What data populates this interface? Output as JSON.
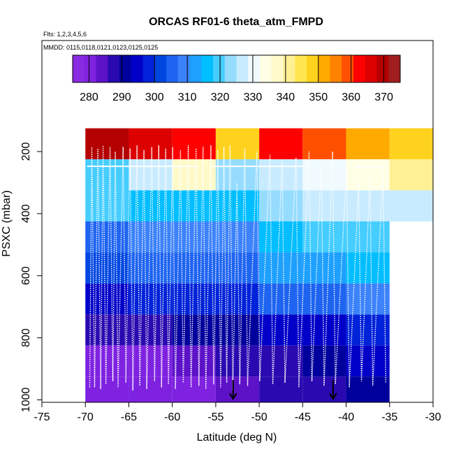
{
  "chart_data": {
    "type": "heatmap",
    "title": "ORCAS RF01-6 theta_atm_FMPD",
    "subtitle_flights": "Flts: 1,2,3,4,5,6",
    "subtitle_dates": "MMDD: 0115,0118,0121,0123,0125,0125",
    "xlabel": "Latitude (deg N)",
    "ylabel": "PSXC (mbar)",
    "xlim": [
      -75,
      -30
    ],
    "ylim": [
      1000,
      0
    ],
    "x_ticks": [
      -75,
      -70,
      -65,
      -60,
      -55,
      -50,
      -45,
      -40,
      -35,
      -30
    ],
    "y_ticks": [
      200,
      400,
      600,
      800,
      1000
    ],
    "colorbar": {
      "min": 275,
      "max": 375,
      "ticks": [
        280,
        290,
        300,
        310,
        320,
        330,
        340,
        350,
        360,
        370
      ],
      "colors": [
        "#8a2be2",
        "#7e22e0",
        "#5d12c8",
        "#2a0ab0",
        "#00009c",
        "#0000c8",
        "#0022d8",
        "#0046e0",
        "#1e64f0",
        "#3c82fa",
        "#1ea0ff",
        "#00beff",
        "#46cdff",
        "#96dcff",
        "#c8ebff",
        "#f0faff",
        "#ffffe6",
        "#fffac8",
        "#fff096",
        "#ffe650",
        "#ffd21e",
        "#ffaa00",
        "#ff8200",
        "#ff5000",
        "#ff0000",
        "#dc0000",
        "#b40000",
        "#a01e1e"
      ]
    },
    "lat_bins": [
      -70,
      -65,
      -60,
      -55,
      -50,
      -45,
      -40,
      -35,
      -30
    ],
    "pressure_bins": [
      125,
      225,
      325,
      425,
      525,
      625,
      725,
      825,
      925,
      1025
    ],
    "cells": [
      [
        370,
        365,
        364,
        348,
        363,
        359,
        350,
        348
      ],
      [
        318,
        326,
        338,
        322,
        327,
        329,
        333,
        340
      ],
      [
        318,
        315,
        317,
        317,
        324,
        326,
        326,
        326
      ],
      [
        305,
        308,
        309,
        308,
        316,
        320,
        320,
        null
      ],
      [
        300,
        304,
        305,
        306,
        311,
        312,
        316,
        null
      ],
      [
        294,
        297,
        297,
        298,
        304,
        306,
        309,
        null
      ],
      [
        287,
        289,
        290,
        291,
        295,
        296,
        298,
        null
      ],
      [
        281,
        282,
        285,
        286,
        288,
        292,
        295,
        null
      ],
      [
        279,
        280,
        281,
        284,
        287,
        289,
        291,
        null
      ]
    ],
    "markers": [
      {
        "lat": -53,
        "pressure": 990,
        "symbol": "arrow-down"
      },
      {
        "lat": -41.5,
        "pressure": 990,
        "symbol": "arrow-down"
      }
    ],
    "flight_track": {
      "color": "#ffffff",
      "top_pressure": 180,
      "bottom_pressure": 960,
      "profiles": [
        {
          "lat": -69.5,
          "bottom": 960,
          "top": 185
        },
        {
          "lat": -68.8,
          "bottom": 965,
          "top": 190
        },
        {
          "lat": -68.2,
          "bottom": 950,
          "top": 180
        },
        {
          "lat": -67.4,
          "bottom": 940,
          "top": 185
        },
        {
          "lat": -66.8,
          "bottom": 960,
          "top": 200
        },
        {
          "lat": -65.9,
          "bottom": 945,
          "top": 185
        },
        {
          "lat": -65.1,
          "bottom": 970,
          "top": 190
        },
        {
          "lat": -64.3,
          "bottom": 955,
          "top": 180
        },
        {
          "lat": -63.5,
          "bottom": 965,
          "top": 195
        },
        {
          "lat": -62.6,
          "bottom": 940,
          "top": 185
        },
        {
          "lat": -61.8,
          "bottom": 960,
          "top": 180
        },
        {
          "lat": -61.0,
          "bottom": 950,
          "top": 190
        },
        {
          "lat": -60.2,
          "bottom": 965,
          "top": 185
        },
        {
          "lat": -59.3,
          "bottom": 945,
          "top": 195
        },
        {
          "lat": -58.4,
          "bottom": 960,
          "top": 180
        },
        {
          "lat": -57.5,
          "bottom": 955,
          "top": 190
        },
        {
          "lat": -56.7,
          "bottom": 965,
          "top": 185
        },
        {
          "lat": -55.8,
          "bottom": 950,
          "top": 180
        },
        {
          "lat": -55.0,
          "bottom": 960,
          "top": 195
        },
        {
          "lat": -54.3,
          "bottom": 945,
          "top": 185
        },
        {
          "lat": -53.6,
          "bottom": 970,
          "top": 180
        },
        {
          "lat": -52.8,
          "bottom": 950,
          "top": 300
        },
        {
          "lat": -51.9,
          "bottom": 955,
          "top": 190
        },
        {
          "lat": -50.5,
          "bottom": 940,
          "top": 200
        },
        {
          "lat": -49.0,
          "bottom": 950,
          "top": 210
        },
        {
          "lat": -47.6,
          "bottom": 945,
          "top": 230
        },
        {
          "lat": -46.0,
          "bottom": 960,
          "top": 220
        },
        {
          "lat": -44.5,
          "bottom": 940,
          "top": 200
        },
        {
          "lat": -43.1,
          "bottom": 955,
          "top": 230
        },
        {
          "lat": -41.8,
          "bottom": 950,
          "top": 200
        },
        {
          "lat": -40.2,
          "bottom": 960,
          "top": 250
        },
        {
          "lat": -38.8,
          "bottom": 940,
          "top": 300
        },
        {
          "lat": -37.5,
          "bottom": 955,
          "top": 280
        },
        {
          "lat": -36.0,
          "bottom": 945,
          "top": 260
        }
      ]
    }
  }
}
